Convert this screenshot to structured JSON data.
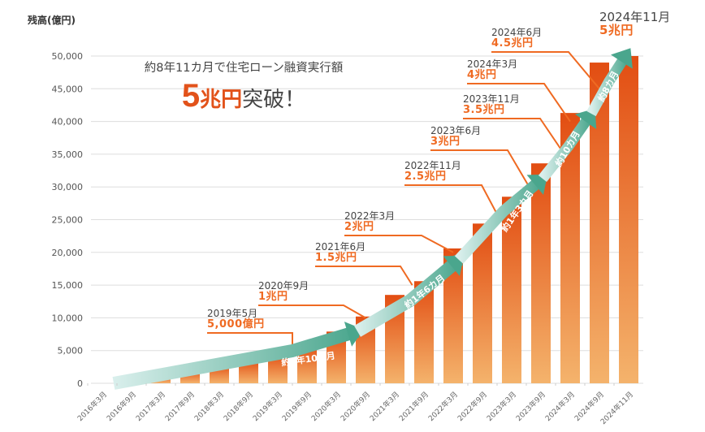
{
  "chart_data": {
    "type": "bar",
    "title": "約8年11カ月で住宅ローン融資実行額",
    "headline_number": "5",
    "headline_unit": "兆円",
    "headline_rest": "突破！",
    "ylabel": "残高(億円)",
    "xlabel": "",
    "ylim": [
      0,
      50000
    ],
    "yticks": [
      0,
      5000,
      10000,
      15000,
      20000,
      25000,
      30000,
      35000,
      40000,
      45000,
      50000
    ],
    "ytick_labels": [
      "0",
      "5,000",
      "10,000",
      "15,000",
      "20,000",
      "25,000",
      "30,000",
      "35,000",
      "40,000",
      "45,000",
      "50,000"
    ],
    "grid": true,
    "categories": [
      "2016年3月",
      "2016年9月",
      "2017年3月",
      "2017年9月",
      "2018年3月",
      "2018年9月",
      "2019年3月",
      "2019年9月",
      "2020年3月",
      "2020年9月",
      "2021年3月",
      "2021年9月",
      "2022年3月",
      "2022年9月",
      "2023年3月",
      "2023年9月",
      "2024年3月",
      "2024年9月",
      "2024年11月"
    ],
    "values": [
      0,
      600,
      1300,
      2100,
      2900,
      3600,
      4600,
      6000,
      7900,
      10200,
      13500,
      15600,
      20600,
      24400,
      28500,
      33600,
      41300,
      49000,
      50000
    ],
    "colors": {
      "bar_top": "#e24d12",
      "bar_bottom": "#f4b36c",
      "arrow_start": "#d9efec",
      "arrow_end": "#4aa68d",
      "callout_line": "#ef6a22",
      "grid": "#dddddd"
    },
    "milestones": [
      {
        "date": "2019年5月",
        "value_label": "5,000億円",
        "value": 5000,
        "pos": 6.5
      },
      {
        "date": "2020年9月",
        "value_label": "1兆円",
        "value": 10000,
        "pos": 9
      },
      {
        "date": "2021年6月",
        "value_label": "1.5兆円",
        "value": 15000,
        "pos": 10.6
      },
      {
        "date": "2022年3月",
        "value_label": "2兆円",
        "value": 20000,
        "pos": 12
      },
      {
        "date": "2022年11月",
        "value_label": "2.5兆円",
        "value": 25000,
        "pos": 13.6
      },
      {
        "date": "2023年6月",
        "value_label": "3兆円",
        "value": 30000,
        "pos": 14.6
      },
      {
        "date": "2023年11月",
        "value_label": "3.5兆円",
        "value": 35000,
        "pos": 15.8
      },
      {
        "date": "2024年3月",
        "value_label": "4兆円",
        "value": 40000,
        "pos": 16
      },
      {
        "date": "2024年6月",
        "value_label": "4.5兆円",
        "value": 45000,
        "pos": 17
      },
      {
        "date": "2024年11月",
        "value_label": "5兆円",
        "value": 50000,
        "pos": 18
      }
    ],
    "arrows": [
      {
        "label": "約4年10カ月",
        "from": "2016年3月",
        "to": "2020年9月"
      },
      {
        "label": "約1年6カ月",
        "from": "2020年9月",
        "to": "2022年3月"
      },
      {
        "label": "約1年3カ月",
        "from": "2022年3月",
        "to": "2023年6月"
      },
      {
        "label": "約10カ月",
        "from": "2023年6月",
        "to": "2024年3月"
      },
      {
        "label": "約8カ月",
        "from": "2024年3月",
        "to": "2024年11月"
      }
    ]
  }
}
